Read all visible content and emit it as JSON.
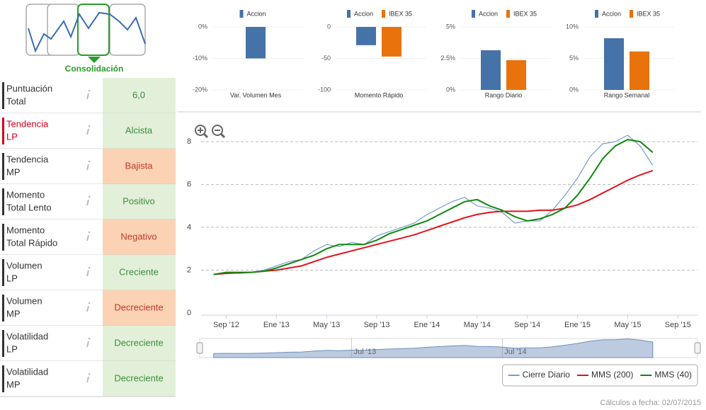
{
  "pattern": {
    "label": "Consolidación"
  },
  "indicators": [
    {
      "label": [
        "Puntuación",
        "Total"
      ],
      "value": "6,0",
      "tone": "positive"
    },
    {
      "label": [
        "Tendencia",
        "LP"
      ],
      "value": "Alcista",
      "tone": "positive",
      "highlight": true
    },
    {
      "label": [
        "Tendencia",
        "MP"
      ],
      "value": "Bajista",
      "tone": "negative"
    },
    {
      "label": [
        "Momento",
        "Total Lento"
      ],
      "value": "Positivo",
      "tone": "positive"
    },
    {
      "label": [
        "Momento",
        "Total Rápido"
      ],
      "value": "Negativo",
      "tone": "negative"
    },
    {
      "label": [
        "Volumen",
        "LP"
      ],
      "value": "Creciente",
      "tone": "positive"
    },
    {
      "label": [
        "Volumen",
        "MP"
      ],
      "value": "Decreciente",
      "tone": "negative"
    },
    {
      "label": [
        "Volatilidad",
        "LP"
      ],
      "value": "Decreciente",
      "tone": "positive"
    },
    {
      "label": [
        "Volatilidad",
        "MP"
      ],
      "value": "Decreciente",
      "tone": "positive"
    }
  ],
  "chart_data": [
    {
      "type": "bar",
      "xlabel": "Var. Volumen Mes",
      "series": [
        {
          "name": "Accion",
          "color": "#4572a7",
          "values": [
            -10
          ]
        }
      ],
      "ylim": [
        -20,
        0
      ],
      "yticks": [
        {
          "value": 0,
          "label": "0%"
        },
        {
          "value": -10,
          "label": "-10%"
        },
        {
          "value": -20,
          "label": "-20%"
        }
      ],
      "grid": true
    },
    {
      "type": "bar",
      "xlabel": "Momento Rápido",
      "series": [
        {
          "name": "Accion",
          "color": "#4572a7",
          "values": [
            -29
          ]
        },
        {
          "name": "IBEX 35",
          "color": "#e8720c",
          "values": [
            -47
          ]
        }
      ],
      "ylim": [
        -100,
        0
      ],
      "yticks": [
        0,
        -50,
        -100
      ],
      "grid": true
    },
    {
      "type": "bar",
      "xlabel": "Rango Diario",
      "series": [
        {
          "name": "Accion",
          "color": "#4572a7",
          "values": [
            3.15
          ]
        },
        {
          "name": "IBEX 35",
          "color": "#e8720c",
          "values": [
            2.36
          ]
        }
      ],
      "ylim": [
        0,
        5
      ],
      "yticks": [
        {
          "value": 5,
          "label": "5%"
        },
        {
          "value": 2.5,
          "label": "2.5%"
        },
        {
          "value": 0,
          "label": "0%"
        }
      ],
      "grid": true
    },
    {
      "type": "bar",
      "xlabel": "Rango Semanal",
      "series": [
        {
          "name": "Accion",
          "color": "#4572a7",
          "values": [
            8.2
          ]
        },
        {
          "name": "IBEX 35",
          "color": "#e8720c",
          "values": [
            6.1
          ]
        }
      ],
      "ylim": [
        0,
        10
      ],
      "yticks": [
        {
          "value": 10,
          "label": "10%"
        },
        {
          "value": 5,
          "label": "5%"
        },
        {
          "value": 0,
          "label": "0%"
        }
      ],
      "grid": true
    },
    {
      "type": "line",
      "x": [
        "2012-08",
        "2012-09",
        "2012-10",
        "2012-11",
        "2012-12",
        "2013-01",
        "2013-02",
        "2013-03",
        "2013-04",
        "2013-05",
        "2013-06",
        "2013-07",
        "2013-08",
        "2013-09",
        "2013-10",
        "2013-11",
        "2013-12",
        "2014-01",
        "2014-02",
        "2014-03",
        "2014-04",
        "2014-05",
        "2014-06",
        "2014-07",
        "2014-08",
        "2014-09",
        "2014-10",
        "2014-11",
        "2014-12",
        "2015-01",
        "2015-02",
        "2015-03",
        "2015-04",
        "2015-05",
        "2015-06",
        "2015-07"
      ],
      "series": [
        {
          "name": "Cierre Diario",
          "color": "#7a9ccb",
          "values": [
            1.8,
            1.9,
            1.85,
            1.9,
            2.0,
            2.2,
            2.4,
            2.5,
            2.9,
            3.2,
            3.1,
            3.3,
            3.2,
            3.6,
            3.8,
            4.0,
            4.2,
            4.6,
            4.9,
            5.2,
            5.4,
            5.0,
            4.9,
            4.7,
            4.2,
            4.3,
            4.3,
            4.8,
            5.5,
            6.3,
            7.3,
            7.9,
            8.0,
            8.3,
            7.8,
            6.9
          ]
        },
        {
          "name": "MMS (200)",
          "color": "#e0141e",
          "values": [
            1.8,
            1.85,
            1.88,
            1.9,
            1.95,
            2.0,
            2.1,
            2.2,
            2.4,
            2.6,
            2.75,
            2.9,
            3.05,
            3.2,
            3.35,
            3.5,
            3.65,
            3.85,
            4.05,
            4.25,
            4.45,
            4.6,
            4.7,
            4.75,
            4.75,
            4.75,
            4.8,
            4.8,
            4.9,
            5.05,
            5.3,
            5.6,
            5.9,
            6.2,
            6.45,
            6.65
          ]
        },
        {
          "name": "MMS (40)",
          "color": "#118811",
          "values": [
            1.8,
            1.9,
            1.9,
            1.9,
            1.95,
            2.1,
            2.3,
            2.5,
            2.7,
            3.0,
            3.2,
            3.2,
            3.2,
            3.4,
            3.7,
            3.9,
            4.1,
            4.3,
            4.6,
            4.9,
            5.2,
            5.3,
            5.0,
            4.8,
            4.5,
            4.3,
            4.4,
            4.6,
            4.9,
            5.5,
            6.3,
            7.2,
            7.8,
            8.1,
            8.0,
            7.5
          ]
        }
      ],
      "xlim": [
        "2012-07",
        "2015-10"
      ],
      "xticks": [
        {
          "value": "2012-09",
          "label": "Sep '12"
        },
        {
          "value": "2013-01",
          "label": "Ene '13"
        },
        {
          "value": "2013-05",
          "label": "May '13"
        },
        {
          "value": "2013-09",
          "label": "Sep '13"
        },
        {
          "value": "2014-01",
          "label": "Ene '14"
        },
        {
          "value": "2014-05",
          "label": "May '14"
        },
        {
          "value": "2014-09",
          "label": "Sep '14"
        },
        {
          "value": "2015-01",
          "label": "Ene '15"
        },
        {
          "value": "2015-05",
          "label": "May '15"
        },
        {
          "value": "2015-09",
          "label": "Sep '15"
        }
      ],
      "ylim": [
        0,
        8.5
      ],
      "yticks": [
        0,
        2,
        4,
        6,
        8
      ],
      "grid": true,
      "legend": "lower right",
      "navigator_ticks": [
        {
          "value": "2013-07",
          "label": "Jul '13"
        },
        {
          "value": "2014-07",
          "label": "Jul '14"
        }
      ]
    }
  ],
  "footer": "Cálculos a fecha: 02/07/2015"
}
